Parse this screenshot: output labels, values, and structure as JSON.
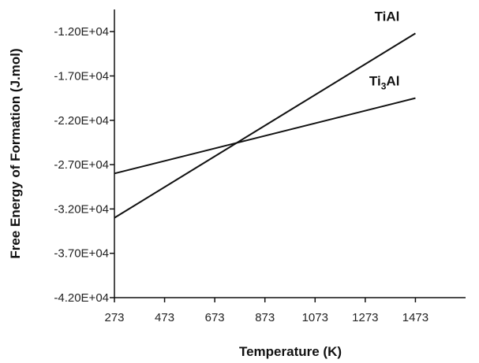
{
  "chart_data": {
    "type": "line",
    "xlabel": "Temperature (K)",
    "ylabel": "Free Energy of Formation (J.mol)",
    "xlim": [
      273,
      1673
    ],
    "ylim": [
      -42000,
      -9500
    ],
    "x_ticks": [
      273,
      473,
      673,
      873,
      1073,
      1273,
      1473
    ],
    "x_tick_labels": [
      "273",
      "473",
      "673",
      "873",
      "1073",
      "1273",
      "1473"
    ],
    "y_ticks": [
      -42000,
      -37000,
      -32000,
      -27000,
      -22000,
      -17000,
      -12000
    ],
    "y_tick_labels": [
      "-4.20E+04",
      "-3.70E+04",
      "-3.20E+04",
      "-2.70E+04",
      "-2.20E+04",
      "-1.70E+04",
      "-1.20E+04"
    ],
    "grid": false,
    "legend": "none",
    "series": [
      {
        "name": "TiAl",
        "label_main": "TiAl",
        "label_sub": "",
        "label_tail": "",
        "x": [
          273,
          1473
        ],
        "y": [
          -33000,
          -12200
        ],
        "color": "#111111"
      },
      {
        "name": "Ti3Al",
        "label_main": "Ti",
        "label_sub": "3",
        "label_tail": "Al",
        "x": [
          273,
          1473
        ],
        "y": [
          -28000,
          -19500
        ],
        "color": "#111111"
      }
    ]
  }
}
